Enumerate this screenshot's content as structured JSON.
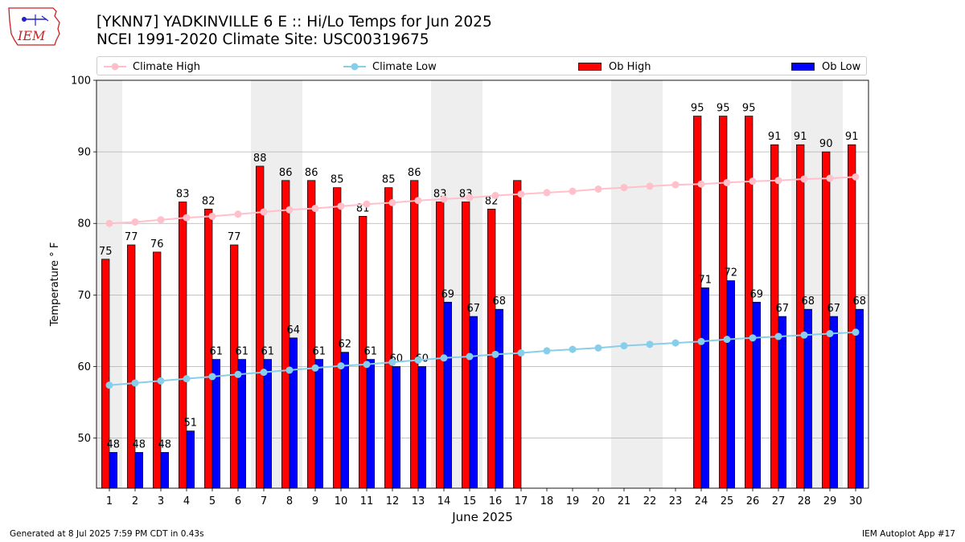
{
  "header": {
    "title_line1": "[YKNN7] YADKINVILLE 6 E :: Hi/Lo Temps for Jun 2025",
    "title_line2": "NCEI 1991-2020 Climate Site: USC00319675",
    "logo_text": "IEM"
  },
  "footer": {
    "generated": "Generated at 8 Jul 2025 7:59 PM CDT in 0.43s",
    "app": "IEM Autoplot App #17"
  },
  "colors": {
    "climate_high": "#ffc0cb",
    "climate_low": "#87ceeb",
    "ob_high": "#ff0000",
    "ob_low": "#0000ff",
    "weekend_shade": "#eeeeee",
    "logo": "#cc2222"
  },
  "chart_data": {
    "type": "bar",
    "xlabel": "June 2025",
    "ylabel": "Temperature $^\\circ$F",
    "ylabel_display": "Temperature ° F",
    "ylim": [
      43,
      100
    ],
    "yticks": [
      50,
      60,
      70,
      80,
      90,
      100
    ],
    "grid": true,
    "legend_placement": "top",
    "categories": [
      "1",
      "2",
      "3",
      "4",
      "5",
      "6",
      "7",
      "8",
      "9",
      "10",
      "11",
      "12",
      "13",
      "14",
      "15",
      "16",
      "17",
      "18",
      "19",
      "20",
      "21",
      "22",
      "23",
      "24",
      "25",
      "26",
      "27",
      "28",
      "29",
      "30"
    ],
    "weekend_shaded_days": [
      [
        1,
        1
      ],
      [
        7,
        8
      ],
      [
        14,
        15
      ],
      [
        21,
        22
      ],
      [
        28,
        29
      ]
    ],
    "series": [
      {
        "name": "Climate High",
        "kind": "line",
        "values": [
          80.0,
          80.2,
          80.5,
          80.8,
          81.0,
          81.3,
          81.6,
          81.9,
          82.1,
          82.4,
          82.7,
          82.9,
          83.2,
          83.4,
          83.6,
          83.9,
          84.1,
          84.3,
          84.5,
          84.8,
          85.0,
          85.2,
          85.4,
          85.5,
          85.7,
          85.9,
          86.0,
          86.2,
          86.3,
          86.5
        ]
      },
      {
        "name": "Climate Low",
        "kind": "line",
        "values": [
          57.4,
          57.7,
          58.0,
          58.3,
          58.6,
          58.9,
          59.2,
          59.5,
          59.8,
          60.1,
          60.3,
          60.6,
          60.9,
          61.2,
          61.4,
          61.7,
          61.9,
          62.2,
          62.4,
          62.6,
          62.9,
          63.1,
          63.3,
          63.5,
          63.8,
          64.0,
          64.2,
          64.4,
          64.6,
          64.8
        ]
      },
      {
        "name": "Ob High",
        "kind": "bar",
        "values": [
          75,
          77,
          76,
          83,
          82,
          77,
          88,
          86,
          86,
          85,
          81,
          85,
          86,
          83,
          83,
          82,
          86,
          null,
          null,
          null,
          null,
          null,
          null,
          95,
          95,
          95,
          91,
          91,
          90,
          91
        ],
        "labels": [
          "75",
          "77",
          "76",
          "83",
          "82",
          "77",
          "88",
          "86",
          "86",
          "85",
          "81",
          "85",
          "86",
          "83",
          "83",
          "82",
          "",
          "",
          "",
          "",
          "",
          "",
          "",
          "95",
          "95",
          "95",
          "91",
          "91",
          "90",
          "91"
        ]
      },
      {
        "name": "Ob Low",
        "kind": "bar",
        "values": [
          48,
          48,
          48,
          51,
          61,
          61,
          61,
          64,
          61,
          62,
          61,
          60,
          60,
          69,
          67,
          68,
          null,
          null,
          null,
          null,
          null,
          null,
          null,
          71,
          72,
          69,
          67,
          68,
          67,
          68
        ],
        "labels": [
          "48",
          "48",
          "48",
          "51",
          "61",
          "61",
          "61",
          "64",
          "61",
          "62",
          "61",
          "60",
          "60",
          "69",
          "67",
          "68",
          "",
          "",
          "",
          "",
          "",
          "",
          "",
          "71",
          "72",
          "69",
          "67",
          "68",
          "67",
          "68"
        ]
      }
    ]
  }
}
